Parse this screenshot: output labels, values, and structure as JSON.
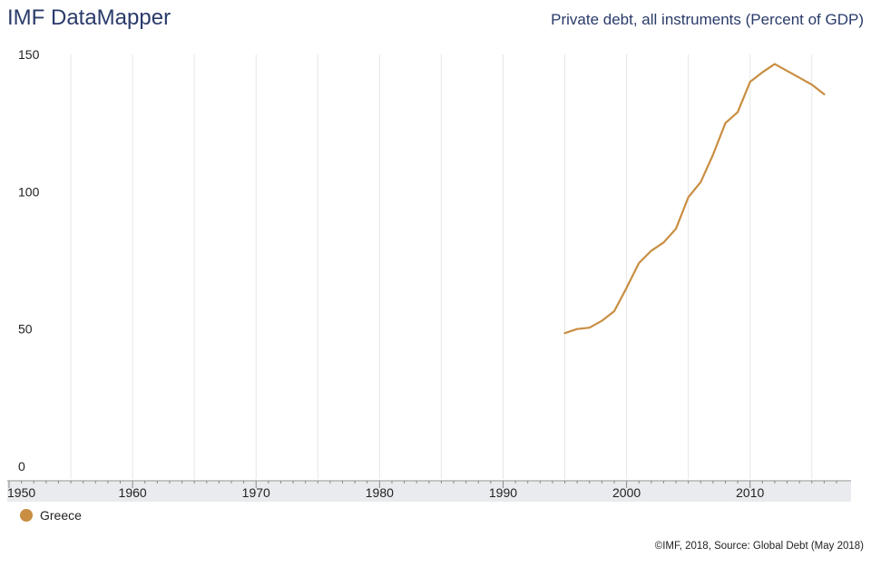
{
  "header": {
    "brand": "IMF DataMapper",
    "indicator": "Private debt, all instruments (Percent of GDP)"
  },
  "legend": {
    "label": "Greece",
    "color": "#c98e42"
  },
  "footer": {
    "credit": "©IMF, 2018, Source: Global Debt (May 2018)"
  },
  "chart_data": {
    "type": "line",
    "title": "Private debt, all instruments (Percent of GDP)",
    "xlim": [
      1950,
      2017
    ],
    "ylim": [
      0,
      150
    ],
    "yticks": [
      0,
      50,
      100,
      150
    ],
    "xticks": [
      1950,
      1960,
      1970,
      1980,
      1990,
      2000,
      2010
    ],
    "grid": "vertical",
    "legend_position": "bottom-left",
    "series": [
      {
        "name": "Greece",
        "color": "#c98e42",
        "x": [
          1995,
          1996,
          1997,
          1998,
          1999,
          2000,
          2001,
          2002,
          2003,
          2004,
          2005,
          2006,
          2007,
          2008,
          2009,
          2010,
          2011,
          2012,
          2013,
          2014,
          2015,
          2016
        ],
        "y": [
          48.5,
          50,
          50.5,
          53,
          56.5,
          65,
          74,
          78.5,
          81.5,
          86.5,
          98,
          103.5,
          113.5,
          125,
          129,
          140,
          143.5,
          146.5,
          144,
          141.5,
          139,
          135.5
        ]
      }
    ]
  }
}
